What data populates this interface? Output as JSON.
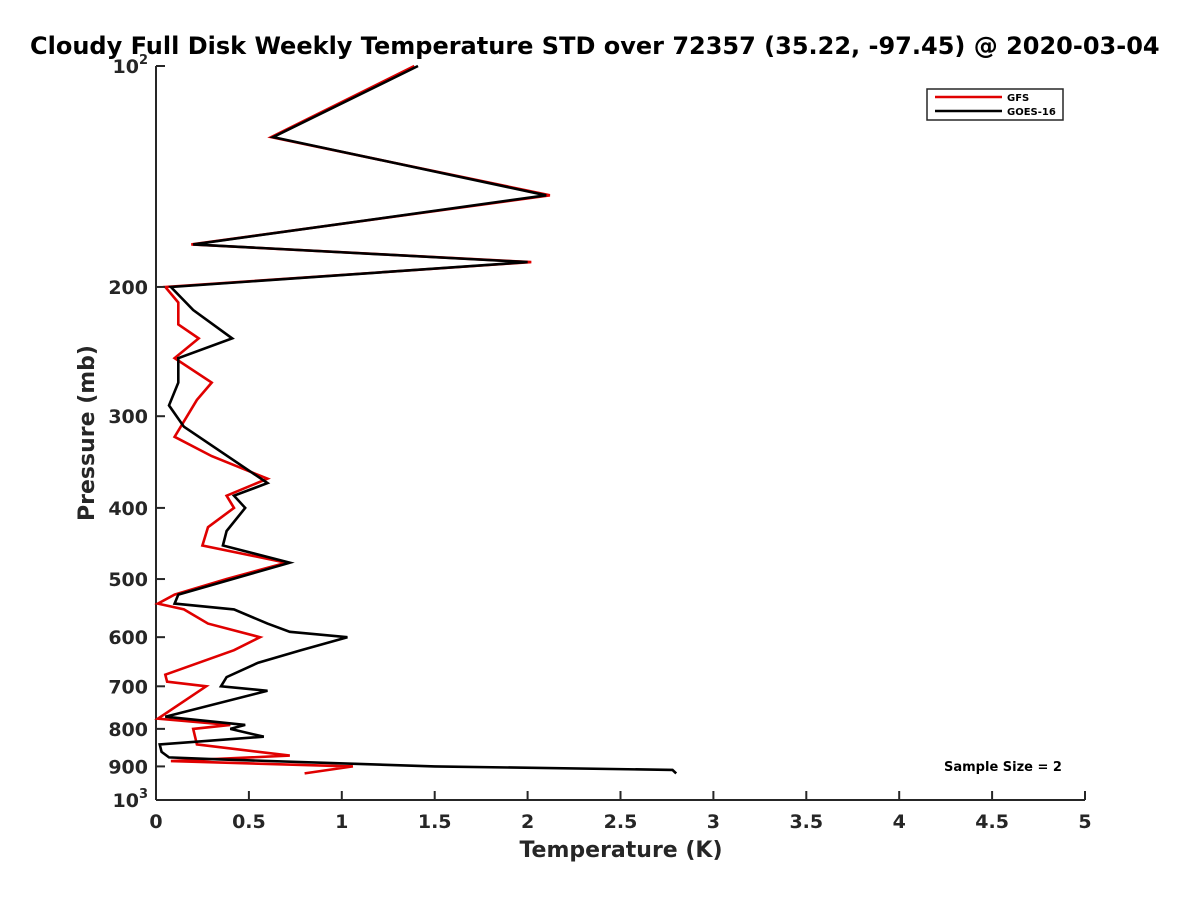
{
  "chart_data": {
    "type": "line",
    "title": "Cloudy Full Disk Weekly Temperature STD over 72357 (35.22, -97.45) @ 2020-03-04",
    "xlabel": "Temperature (K)",
    "ylabel": "Pressure (mb)",
    "xlim": [
      0,
      5
    ],
    "ylim": [
      100,
      1000
    ],
    "y_scale": "log",
    "y_reversed": true,
    "grid": false,
    "legend_position": "top-right",
    "x_ticks": [
      "0",
      "0.5",
      "1",
      "1.5",
      "2",
      "2.5",
      "3",
      "3.5",
      "4",
      "4.5",
      "5"
    ],
    "y_ticks": [
      {
        "value": 100,
        "base": "10",
        "sup": "2"
      },
      {
        "value": 200,
        "base": "200",
        "sup": ""
      },
      {
        "value": 300,
        "base": "300",
        "sup": ""
      },
      {
        "value": 400,
        "base": "400",
        "sup": ""
      },
      {
        "value": 500,
        "base": "500",
        "sup": ""
      },
      {
        "value": 600,
        "base": "600",
        "sup": ""
      },
      {
        "value": 700,
        "base": "700",
        "sup": ""
      },
      {
        "value": 800,
        "base": "800",
        "sup": ""
      },
      {
        "value": 900,
        "base": "900",
        "sup": ""
      },
      {
        "value": 1000,
        "base": "10",
        "sup": "3"
      }
    ],
    "annotation": "Sample Size = 2",
    "series": [
      {
        "name": "GFS",
        "color": "#e00000",
        "points": [
          [
            1.39,
            100
          ],
          [
            0.62,
            125
          ],
          [
            2.12,
            150
          ],
          [
            0.19,
            175
          ],
          [
            2.02,
            185
          ],
          [
            0.05,
            200
          ],
          [
            0.12,
            210
          ],
          [
            0.12,
            225
          ],
          [
            0.23,
            235
          ],
          [
            0.1,
            250
          ],
          [
            0.3,
            270
          ],
          [
            0.22,
            285
          ],
          [
            0.1,
            320
          ],
          [
            0.3,
            340
          ],
          [
            0.6,
            365
          ],
          [
            0.38,
            385
          ],
          [
            0.42,
            400
          ],
          [
            0.28,
            425
          ],
          [
            0.25,
            450
          ],
          [
            0.7,
            475
          ],
          [
            0.38,
            500
          ],
          [
            0.1,
            525
          ],
          [
            0.01,
            540
          ],
          [
            0.15,
            550
          ],
          [
            0.28,
            575
          ],
          [
            0.56,
            600
          ],
          [
            0.42,
            625
          ],
          [
            0.05,
            675
          ],
          [
            0.06,
            690
          ],
          [
            0.27,
            700
          ],
          [
            0.01,
            775
          ],
          [
            0.4,
            790
          ],
          [
            0.2,
            800
          ],
          [
            0.22,
            840
          ],
          [
            0.72,
            870
          ],
          [
            0.08,
            885
          ],
          [
            1.06,
            900
          ],
          [
            0.8,
            920
          ]
        ]
      },
      {
        "name": "GOES-16",
        "color": "#000000",
        "points": [
          [
            1.41,
            100
          ],
          [
            0.63,
            125
          ],
          [
            2.1,
            150
          ],
          [
            0.2,
            175
          ],
          [
            2.0,
            185
          ],
          [
            0.08,
            200
          ],
          [
            0.2,
            215
          ],
          [
            0.41,
            235
          ],
          [
            0.12,
            250
          ],
          [
            0.12,
            270
          ],
          [
            0.07,
            290
          ],
          [
            0.15,
            310
          ],
          [
            0.6,
            370
          ],
          [
            0.42,
            385
          ],
          [
            0.48,
            400
          ],
          [
            0.38,
            430
          ],
          [
            0.36,
            450
          ],
          [
            0.72,
            475
          ],
          [
            0.12,
            525
          ],
          [
            0.1,
            540
          ],
          [
            0.42,
            550
          ],
          [
            0.6,
            575
          ],
          [
            0.72,
            590
          ],
          [
            1.03,
            600
          ],
          [
            0.78,
            625
          ],
          [
            0.55,
            650
          ],
          [
            0.38,
            680
          ],
          [
            0.35,
            700
          ],
          [
            0.6,
            710
          ],
          [
            0.05,
            770
          ],
          [
            0.48,
            790
          ],
          [
            0.4,
            800
          ],
          [
            0.58,
            820
          ],
          [
            0.02,
            840
          ],
          [
            0.03,
            860
          ],
          [
            0.07,
            875
          ],
          [
            0.33,
            880
          ],
          [
            1.5,
            900
          ],
          [
            2.78,
            910
          ],
          [
            2.8,
            920
          ]
        ]
      }
    ]
  }
}
